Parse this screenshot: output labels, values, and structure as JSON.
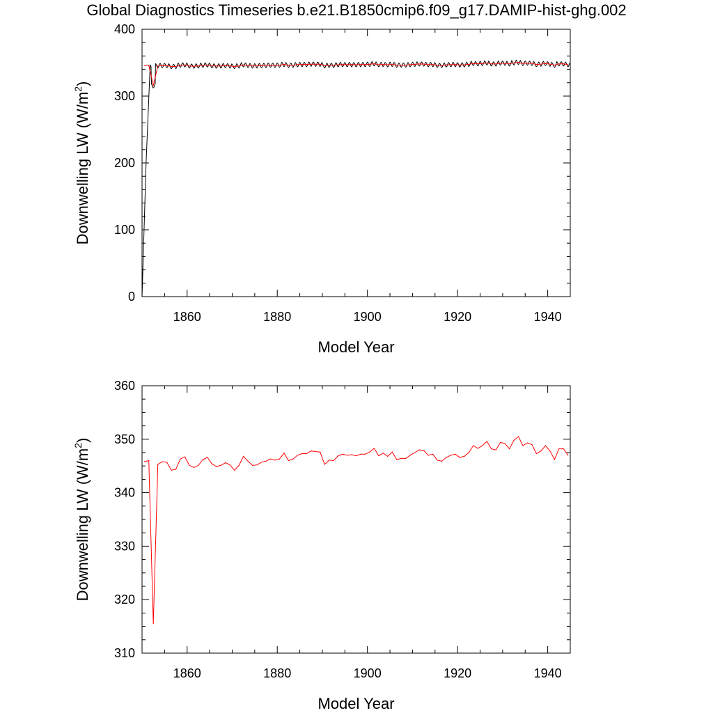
{
  "title": "Global Diagnostics Timeseries b.e21.B1850cmip6.f09_g17.DAMIP-hist-ghg.002",
  "colors": {
    "annual": "#ff0000",
    "monthly": "#000000",
    "axis": "#000000"
  },
  "chart_data": [
    {
      "type": "line",
      "xlabel": "Model Year",
      "ylabel": "Downwelling LW (W/m",
      "ylabel_superscript": "2",
      "ylabel_suffix": ")",
      "xlim": [
        1850,
        1945
      ],
      "ylim": [
        0,
        400
      ],
      "xticks": [
        1860,
        1880,
        1900,
        1920,
        1940
      ],
      "yticks": [
        0,
        100,
        200,
        300,
        400
      ],
      "series": [
        {
          "style": "monthly",
          "color": "#000000",
          "x": [
            1850,
            1850.9,
            1851.8,
            1852
          ],
          "y": [
            0,
            200,
            347,
            344
          ],
          "note_cycle": "continues as monthly oscillation of about ±3 W/m2 around the annual curve to 1945"
        },
        {
          "style": "annual",
          "color": "#ff0000",
          "x": [
            1850.5,
            1851.5,
            1852.5,
            1853.5,
            1854.5,
            1855.5,
            1856.5,
            1857.5,
            1858.5,
            1859.5,
            1860.5,
            1861.5,
            1862.5,
            1863.5,
            1864.5,
            1865.5,
            1866.5,
            1867.5,
            1868.5,
            1869.5,
            1870.5,
            1871.5,
            1872.5,
            1873.5,
            1874.5,
            1875.5,
            1876.5,
            1877.5,
            1878.5,
            1879.5,
            1880.5,
            1881.5,
            1882.5,
            1883.5,
            1884.5,
            1885.5,
            1886.5,
            1887.5,
            1888.5,
            1889.5,
            1890.5,
            1891.5,
            1892.5,
            1893.5,
            1894.5,
            1895.5,
            1896.5,
            1897.5,
            1898.5,
            1899.5,
            1900.5,
            1901.5,
            1902.5,
            1903.5,
            1904.5,
            1905.5,
            1906.5,
            1907.5,
            1908.5,
            1909.5,
            1910.5,
            1911.5,
            1912.5,
            1913.5,
            1914.5,
            1915.5,
            1916.5,
            1917.5,
            1918.5,
            1919.5,
            1920.5,
            1921.5,
            1922.5,
            1923.5,
            1924.5,
            1925.5,
            1926.5,
            1927.5,
            1928.5,
            1929.5,
            1930.5,
            1931.5,
            1932.5,
            1933.5,
            1934.5,
            1935.5,
            1936.5,
            1937.5,
            1938.5,
            1939.5,
            1940.5,
            1941.5,
            1942.5,
            1943.5,
            1944.5
          ],
          "y": [
            345.8,
            346.0,
            315.5,
            345.3,
            345.8,
            345.7,
            344.2,
            344.4,
            346.3,
            346.7,
            345.1,
            344.7,
            345.1,
            346.2,
            346.6,
            345.4,
            344.9,
            345.1,
            345.6,
            345.2,
            344.2,
            345.1,
            346.8,
            345.9,
            345.1,
            345.2,
            345.7,
            345.9,
            346.3,
            346.1,
            346.3,
            347.4,
            346.0,
            346.3,
            347.0,
            347.3,
            347.3,
            347.8,
            347.7,
            347.6,
            345.3,
            346.1,
            346.0,
            346.9,
            347.2,
            347.0,
            347.1,
            346.9,
            347.2,
            347.2,
            347.6,
            348.3,
            346.9,
            347.4,
            346.8,
            347.6,
            346.2,
            346.4,
            346.4,
            347.0,
            347.5,
            348.0,
            347.9,
            347.0,
            347.2,
            346.1,
            345.9,
            346.6,
            347.0,
            347.2,
            346.6,
            346.8,
            347.5,
            348.8,
            348.3,
            348.8,
            349.6,
            348.2,
            348.0,
            349.4,
            349.2,
            348.2,
            349.8,
            350.5,
            348.8,
            349.3,
            349.0,
            347.3,
            347.8,
            348.8,
            347.8,
            346.2,
            348.2,
            348.2,
            347.0
          ]
        }
      ]
    },
    {
      "type": "line",
      "xlabel": "Model Year",
      "ylabel": "Downwelling LW (W/m",
      "ylabel_superscript": "2",
      "ylabel_suffix": ")",
      "xlim": [
        1850,
        1945
      ],
      "ylim": [
        310,
        360
      ],
      "xticks": [
        1860,
        1880,
        1900,
        1920,
        1940
      ],
      "yticks": [
        310,
        320,
        330,
        340,
        350,
        360
      ],
      "series_ref": "annual"
    }
  ]
}
